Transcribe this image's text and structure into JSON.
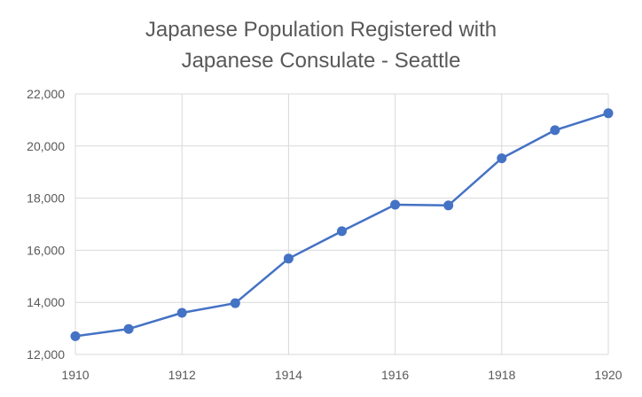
{
  "chart_data": {
    "type": "line",
    "title_lines": [
      "Japanese Population Registered with",
      "Japanese Consulate - Seattle"
    ],
    "x": [
      1910,
      1911,
      1912,
      1913,
      1914,
      1915,
      1916,
      1917,
      1918,
      1919,
      1920
    ],
    "series": [
      {
        "values": [
          12700,
          12980,
          13600,
          13970,
          15680,
          16730,
          17750,
          17720,
          19530,
          20610,
          21260
        ]
      }
    ],
    "xlim": [
      1910,
      1920
    ],
    "ylim": [
      12000,
      22000
    ],
    "x_ticks": [
      "1910",
      "1912",
      "1914",
      "1916",
      "1918",
      "1920"
    ],
    "y_ticks": [
      "12,000",
      "14,000",
      "16,000",
      "18,000",
      "20,000",
      "22,000"
    ],
    "grid": true,
    "colors": {
      "series": "#4472c4",
      "grid": "#d9d9d9",
      "text": "#595959"
    }
  }
}
